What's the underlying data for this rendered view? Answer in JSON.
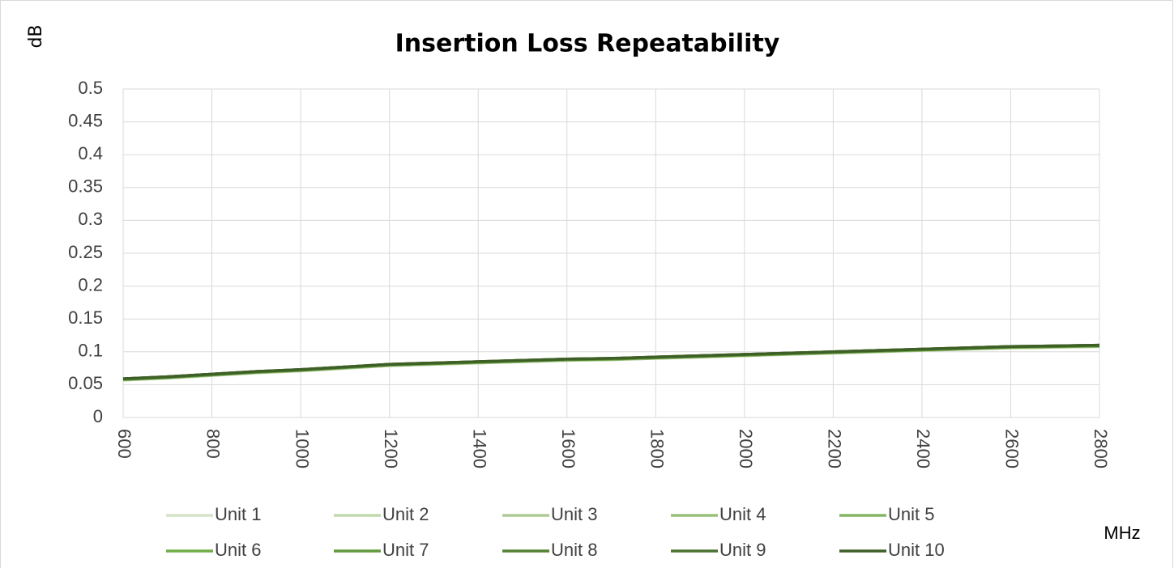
{
  "chart_data": {
    "type": "line",
    "title": "Insertion Loss Repeatability",
    "y_label": "dB",
    "x_label": "MHz",
    "x": [
      600,
      700,
      800,
      900,
      1000,
      1100,
      1200,
      1300,
      1400,
      1500,
      1600,
      1700,
      1800,
      1900,
      2000,
      2100,
      2200,
      2300,
      2400,
      2500,
      2600,
      2700,
      2800
    ],
    "series": [
      {
        "name": "Unit 1",
        "color": "#d5e3c8",
        "values": [
          0.057,
          0.06,
          0.064,
          0.068,
          0.071,
          0.075,
          0.079,
          0.081,
          0.083,
          0.085,
          0.087,
          0.088,
          0.09,
          0.092,
          0.094,
          0.096,
          0.098,
          0.1,
          0.102,
          0.104,
          0.106,
          0.107,
          0.108
        ]
      },
      {
        "name": "Unit 2",
        "color": "#c2d9ad",
        "values": [
          0.057,
          0.06,
          0.064,
          0.068,
          0.071,
          0.075,
          0.079,
          0.081,
          0.083,
          0.085,
          0.087,
          0.088,
          0.09,
          0.092,
          0.094,
          0.096,
          0.098,
          0.1,
          0.102,
          0.104,
          0.106,
          0.107,
          0.108
        ]
      },
      {
        "name": "Unit 3",
        "color": "#aecb94",
        "values": [
          0.057,
          0.06,
          0.064,
          0.068,
          0.071,
          0.075,
          0.079,
          0.081,
          0.083,
          0.085,
          0.087,
          0.088,
          0.09,
          0.092,
          0.094,
          0.096,
          0.098,
          0.1,
          0.102,
          0.104,
          0.106,
          0.107,
          0.108
        ]
      },
      {
        "name": "Unit 4",
        "color": "#99c07a",
        "values": [
          0.058,
          0.061,
          0.065,
          0.069,
          0.072,
          0.076,
          0.08,
          0.082,
          0.084,
          0.086,
          0.088,
          0.089,
          0.091,
          0.093,
          0.095,
          0.097,
          0.099,
          0.101,
          0.103,
          0.105,
          0.107,
          0.108,
          0.109
        ]
      },
      {
        "name": "Unit 5",
        "color": "#84b562",
        "values": [
          0.058,
          0.061,
          0.065,
          0.069,
          0.072,
          0.076,
          0.08,
          0.082,
          0.084,
          0.086,
          0.088,
          0.089,
          0.091,
          0.093,
          0.095,
          0.097,
          0.099,
          0.101,
          0.103,
          0.105,
          0.107,
          0.108,
          0.109
        ]
      },
      {
        "name": "Unit 6",
        "color": "#70ad47",
        "values": [
          0.058,
          0.061,
          0.065,
          0.069,
          0.072,
          0.076,
          0.08,
          0.082,
          0.084,
          0.086,
          0.088,
          0.089,
          0.091,
          0.093,
          0.095,
          0.097,
          0.099,
          0.101,
          0.103,
          0.105,
          0.107,
          0.108,
          0.109
        ]
      },
      {
        "name": "Unit 7",
        "color": "#62993d",
        "values": [
          0.058,
          0.061,
          0.065,
          0.069,
          0.072,
          0.076,
          0.08,
          0.082,
          0.084,
          0.086,
          0.088,
          0.089,
          0.091,
          0.093,
          0.095,
          0.097,
          0.099,
          0.101,
          0.103,
          0.105,
          0.107,
          0.108,
          0.109
        ]
      },
      {
        "name": "Unit 8",
        "color": "#548235",
        "values": [
          0.059,
          0.062,
          0.066,
          0.07,
          0.073,
          0.077,
          0.081,
          0.083,
          0.085,
          0.087,
          0.089,
          0.09,
          0.092,
          0.094,
          0.096,
          0.098,
          0.1,
          0.102,
          0.104,
          0.106,
          0.108,
          0.109,
          0.11
        ]
      },
      {
        "name": "Unit 9",
        "color": "#4a722e",
        "values": [
          0.059,
          0.062,
          0.066,
          0.07,
          0.073,
          0.077,
          0.081,
          0.083,
          0.085,
          0.087,
          0.089,
          0.09,
          0.092,
          0.094,
          0.096,
          0.098,
          0.1,
          0.102,
          0.104,
          0.106,
          0.108,
          0.109,
          0.11
        ]
      },
      {
        "name": "Unit 10",
        "color": "#3e6027",
        "values": [
          0.059,
          0.062,
          0.066,
          0.07,
          0.073,
          0.077,
          0.081,
          0.083,
          0.085,
          0.087,
          0.089,
          0.09,
          0.092,
          0.094,
          0.096,
          0.098,
          0.1,
          0.102,
          0.104,
          0.106,
          0.108,
          0.109,
          0.11
        ]
      }
    ],
    "xlim": [
      600,
      2800
    ],
    "xticks": [
      600,
      800,
      1000,
      1200,
      1400,
      1600,
      1800,
      2000,
      2200,
      2400,
      2600,
      2800
    ],
    "ylim": [
      0,
      0.5
    ],
    "yticks": [
      0,
      0.05,
      0.1,
      0.15,
      0.2,
      0.25,
      0.3,
      0.35,
      0.4,
      0.45,
      0.5
    ],
    "grid": true,
    "legend": "bottom"
  }
}
